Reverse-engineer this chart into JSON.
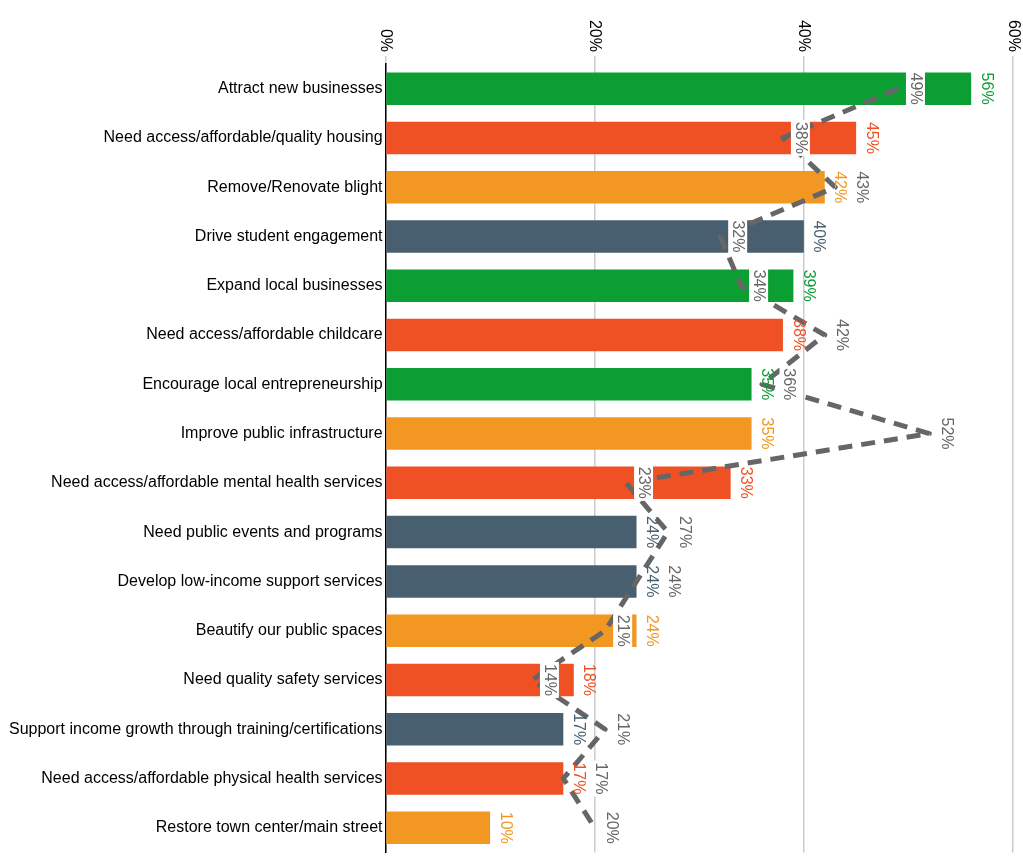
{
  "chart_data": {
    "type": "bar",
    "orientation": "horizontal",
    "categories": [
      "Attract new businesses",
      "Need access/affordable/quality housing",
      "Remove/Renovate blight",
      "Drive student engagement",
      "Expand local businesses",
      "Need access/affordable childcare",
      "Encourage local entrepreneurship",
      "Improve public infrastructure",
      "Need access/affordable mental health services",
      "Need public events and programs",
      "Develop low-income support services",
      "Beautify our public spaces",
      "Need quality safety services",
      "Support income growth through training/certifications",
      "Need access/affordable physical health services",
      "Restore town center/main street"
    ],
    "series": [
      {
        "colors": [
          "#0a9e33",
          "#ef5124",
          "#f29722",
          "#475f6e",
          "#0a9e33",
          "#ef5124",
          "#0a9e33",
          "#f29722",
          "#ef5124",
          "#475f6e",
          "#475f6e",
          "#f29722",
          "#ef5124",
          "#475f6e",
          "#ef5124",
          "#f29722"
        ],
        "values": [
          56,
          45,
          42,
          40,
          39,
          38,
          35,
          35,
          33,
          24,
          24,
          24,
          18,
          17,
          17,
          10
        ],
        "value_labels": [
          "56%",
          "45%",
          "42%",
          "40%",
          "39%",
          "38%",
          "35%",
          "35%",
          "33%",
          "24%",
          "24%",
          "24%",
          "18%",
          "17%",
          "17%",
          "10%"
        ]
      },
      {
        "type": "line",
        "color": "#666666",
        "values": [
          49,
          38,
          43,
          32,
          34,
          42,
          36,
          52,
          23,
          27,
          24,
          21,
          14,
          21,
          17,
          20
        ],
        "value_labels": [
          "49%",
          "38%",
          "43%",
          "32%",
          "34%",
          "42%",
          "36%",
          "52%",
          "23%",
          "27%",
          "24%",
          "21%",
          "14%",
          "21%",
          "17%",
          "20%"
        ]
      }
    ],
    "xlim": [
      0,
      60
    ],
    "xticks": [
      {
        "value": 0,
        "label": "0%"
      },
      {
        "value": 20,
        "label": "20%"
      },
      {
        "value": 40,
        "label": "40%"
      },
      {
        "value": 60,
        "label": "60%"
      }
    ],
    "grid": "x",
    "line_style": "dashed",
    "marker": "none"
  }
}
